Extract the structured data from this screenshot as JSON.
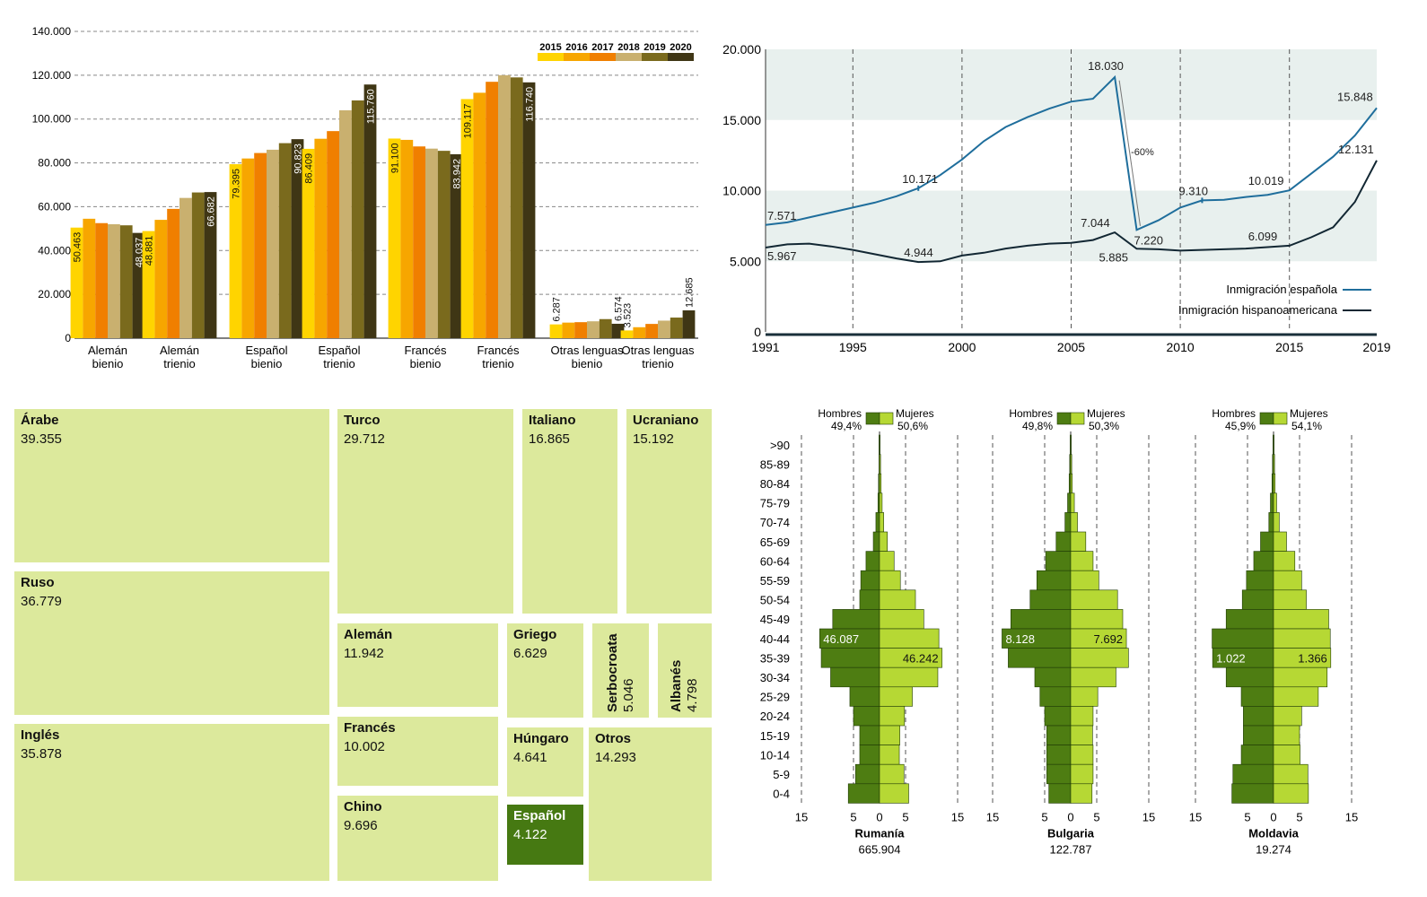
{
  "chart_data": [
    {
      "type": "bar",
      "categories": [
        "Alemán bienio",
        "Alemán trienio",
        "Español bienio",
        "Español trienio",
        "Francés bienio",
        "Francés trienio",
        "Otras lenguas bienio",
        "Otras lenguas trienio"
      ],
      "category_lines": [
        [
          "Alemán",
          "bienio"
        ],
        [
          "Alemán",
          "trienio"
        ],
        [
          "Español",
          "bienio"
        ],
        [
          "Español",
          "trienio"
        ],
        [
          "Francés",
          "bienio"
        ],
        [
          "Francés",
          "trienio"
        ],
        [
          "Otras lenguas",
          "bienio"
        ],
        [
          "Otras lenguas",
          "trienio"
        ]
      ],
      "legend": [
        "2015",
        "2016",
        "2017",
        "2018",
        "2019",
        "2020"
      ],
      "colors": [
        "#ffd400",
        "#f7a600",
        "#f07f00",
        "#c9b06f",
        "#7a6a1d",
        "#3f3615"
      ],
      "series": [
        {
          "name": "2015",
          "values": [
            50463,
            48881,
            79395,
            86409,
            91100,
            109117,
            6287,
            3523
          ]
        },
        {
          "name": "2016",
          "values": [
            54500,
            54000,
            82000,
            91000,
            90500,
            112000,
            7100,
            5000
          ]
        },
        {
          "name": "2017",
          "values": [
            52500,
            59000,
            84500,
            94500,
            87500,
            117000,
            7300,
            6500
          ]
        },
        {
          "name": "2018",
          "values": [
            52000,
            64000,
            86000,
            104000,
            86500,
            120000,
            7700,
            8000
          ]
        },
        {
          "name": "2019",
          "values": [
            51500,
            66500,
            89000,
            108500,
            85500,
            119000,
            8700,
            9400
          ]
        },
        {
          "name": "2020",
          "values": [
            48037,
            66682,
            90823,
            115760,
            83942,
            116740,
            6574,
            12685
          ]
        }
      ],
      "labels": [
        {
          "cat": 0,
          "series": 0,
          "text": "50.463"
        },
        {
          "cat": 0,
          "series": 5,
          "text": "48.037"
        },
        {
          "cat": 1,
          "series": 0,
          "text": "48.881"
        },
        {
          "cat": 1,
          "series": 5,
          "text": "66.682"
        },
        {
          "cat": 2,
          "series": 0,
          "text": "79.395"
        },
        {
          "cat": 2,
          "series": 5,
          "text": "90.823"
        },
        {
          "cat": 3,
          "series": 0,
          "text": "86.409"
        },
        {
          "cat": 3,
          "series": 5,
          "text": "115.760"
        },
        {
          "cat": 4,
          "series": 0,
          "text": "91.100"
        },
        {
          "cat": 4,
          "series": 5,
          "text": "83.942"
        },
        {
          "cat": 5,
          "series": 0,
          "text": "109.117"
        },
        {
          "cat": 5,
          "series": 5,
          "text": "116.740"
        },
        {
          "cat": 6,
          "series": 0,
          "text": "6.287"
        },
        {
          "cat": 6,
          "series": 5,
          "text": "6.574"
        },
        {
          "cat": 7,
          "series": 0,
          "text": "3.523"
        },
        {
          "cat": 7,
          "series": 5,
          "text": "12.685"
        }
      ],
      "yticks": [
        0,
        20000,
        40000,
        60000,
        80000,
        100000,
        120000,
        140000
      ],
      "ytick_labels": [
        "0",
        "20.000",
        "40.000",
        "60.000",
        "80.000",
        "100.000",
        "120.000",
        "140.000"
      ],
      "ylim": [
        0,
        140000
      ]
    },
    {
      "type": "line",
      "xlim": [
        1991,
        2019
      ],
      "ylim": [
        0,
        20000
      ],
      "xticks": [
        1991,
        1995,
        2000,
        2005,
        2010,
        2015,
        2019
      ],
      "yticks": [
        0,
        5000,
        10000,
        15000,
        20000
      ],
      "ytick_labels": [
        "0",
        "5.000",
        "10.000",
        "15.000",
        "20.000"
      ],
      "series": [
        {
          "name": "Inmigración española",
          "color": "#1f6e9c",
          "x": [
            1991,
            1992,
            1993,
            1994,
            1995,
            1996,
            1997,
            1998,
            1999,
            2000,
            2001,
            2002,
            2003,
            2004,
            2005,
            2006,
            2007,
            2008,
            2009,
            2010,
            2011,
            2012,
            2013,
            2014,
            2015,
            2016,
            2017,
            2018,
            2019
          ],
          "y": [
            7571,
            7750,
            8100,
            8450,
            8800,
            9150,
            9600,
            10171,
            11100,
            12200,
            13500,
            14500,
            15200,
            15800,
            16300,
            16500,
            18030,
            7220,
            7900,
            8800,
            9310,
            9350,
            9550,
            9700,
            10019,
            11200,
            12400,
            13900,
            15848
          ]
        },
        {
          "name": "Inmigración hispanoamericana",
          "color": "#122733",
          "x": [
            1991,
            1992,
            1993,
            1994,
            1995,
            1996,
            1997,
            1998,
            1999,
            2000,
            2001,
            2002,
            2003,
            2004,
            2005,
            2006,
            2007,
            2008,
            2009,
            2010,
            2011,
            2012,
            2013,
            2014,
            2015,
            2016,
            2017,
            2018,
            2019
          ],
          "y": [
            5967,
            6200,
            6250,
            6050,
            5800,
            5500,
            5200,
            4944,
            5000,
            5400,
            5600,
            5900,
            6100,
            6250,
            6300,
            6500,
            7044,
            5885,
            5850,
            5750,
            5800,
            5850,
            5900,
            6000,
            6099,
            6700,
            7400,
            9200,
            12131
          ]
        }
      ],
      "annotations": [
        {
          "x": 1991,
          "y": 7571,
          "text": "7.571"
        },
        {
          "x": 1998,
          "y": 10171,
          "text": "10.171"
        },
        {
          "x": 2007,
          "y": 18030,
          "text": "18.030"
        },
        {
          "x": 2008,
          "y": 7220,
          "text": "7.220"
        },
        {
          "x": 2011,
          "y": 9310,
          "text": "9.310"
        },
        {
          "x": 2015,
          "y": 10019,
          "text": "10.019"
        },
        {
          "x": 2019,
          "y": 15848,
          "text": "15.848"
        },
        {
          "x": 1991,
          "y": 5967,
          "text": "5.967"
        },
        {
          "x": 1998,
          "y": 4944,
          "text": "4.944"
        },
        {
          "x": 2007,
          "y": 7044,
          "text": "7.044"
        },
        {
          "x": 2008,
          "y": 5885,
          "text": "5.885"
        },
        {
          "x": 2015,
          "y": 6099,
          "text": "6.099"
        },
        {
          "x": 2019,
          "y": 12131,
          "text": "12.131"
        }
      ],
      "drop_label": "-60%"
    },
    {
      "type": "treemap",
      "items": [
        {
          "name": "Árabe",
          "value": "39.355"
        },
        {
          "name": "Ruso",
          "value": "36.779"
        },
        {
          "name": "Inglés",
          "value": "35.878"
        },
        {
          "name": "Turco",
          "value": "29.712"
        },
        {
          "name": "Italiano",
          "value": "16.865"
        },
        {
          "name": "Ucraniano",
          "value": "15.192"
        },
        {
          "name": "Alemán",
          "value": "11.942"
        },
        {
          "name": "Griego",
          "value": "6.629"
        },
        {
          "name": "Serbocroata",
          "value": "5.046"
        },
        {
          "name": "Albanés",
          "value": "4.798"
        },
        {
          "name": "Francés",
          "value": "10.002"
        },
        {
          "name": "Húngaro",
          "value": "4.641"
        },
        {
          "name": "Otros",
          "value": "14.293"
        },
        {
          "name": "Chino",
          "value": "9.696"
        },
        {
          "name": "Español",
          "value": "4.122"
        }
      ],
      "highlight": "Español",
      "colors": {
        "cell": "#dce99c",
        "highlight": "#467912"
      }
    },
    {
      "type": "pyramid",
      "age_groups": [
        ">90",
        "85-89",
        "80-84",
        "75-79",
        "70-74",
        "65-69",
        "60-64",
        "55-59",
        "50-54",
        "45-49",
        "40-44",
        "35-39",
        "30-34",
        "25-29",
        "20-24",
        "15-19",
        "10-14",
        "5-9",
        "0-4"
      ],
      "axis_ticks": [
        "15",
        "5",
        "0",
        "5",
        "15"
      ],
      "legend": {
        "men": "Hombres",
        "women": "Mujeres"
      },
      "colors": {
        "men": "#4e7d12",
        "women": "#b6d834"
      },
      "countries": [
        {
          "name": "Rumanía",
          "total": "665.904",
          "men_pct": "49,4%",
          "women_pct": "50,6%",
          "men": [
            0.1,
            0.1,
            0.2,
            0.3,
            0.7,
            1.2,
            2.6,
            3.6,
            3.8,
            9.0,
            11.5,
            11.2,
            9.4,
            5.7,
            5.0,
            3.8,
            3.8,
            4.6,
            6.0
          ],
          "women": [
            0.1,
            0.2,
            0.3,
            0.5,
            0.8,
            1.5,
            2.8,
            4.0,
            6.9,
            8.5,
            11.4,
            12.0,
            11.2,
            6.3,
            4.8,
            3.9,
            3.8,
            4.7,
            5.6
          ],
          "labels": [
            {
              "side": "men",
              "group": 10,
              "text": "46.087"
            },
            {
              "side": "women",
              "group": 11,
              "text": "46.242"
            }
          ]
        },
        {
          "name": "Bulgaria",
          "total": "122.787",
          "men_pct": "49,8%",
          "women_pct": "50,3%",
          "men": [
            0.1,
            0.2,
            0.3,
            0.6,
            1.1,
            2.8,
            4.8,
            6.5,
            7.8,
            11.5,
            13.2,
            12.0,
            6.9,
            5.9,
            5.0,
            4.6,
            4.6,
            4.6,
            4.2
          ],
          "women": [
            0.1,
            0.2,
            0.3,
            0.7,
            1.3,
            2.9,
            4.3,
            5.4,
            9.0,
            10.0,
            10.7,
            11.1,
            8.7,
            5.2,
            4.3,
            4.2,
            4.3,
            4.3,
            4.1
          ],
          "labels": [
            {
              "side": "men",
              "group": 10,
              "text": "8.128"
            },
            {
              "side": "women",
              "group": 10,
              "text": "7.692"
            }
          ]
        },
        {
          "name": "Moldavia",
          "total": "19.274",
          "men_pct": "45,9%",
          "women_pct": "54,1%",
          "men": [
            0.1,
            0.2,
            0.3,
            0.6,
            0.9,
            2.5,
            3.8,
            5.2,
            6.0,
            9.1,
            11.8,
            11.7,
            9.1,
            6.2,
            5.8,
            5.8,
            6.2,
            7.8,
            8.0
          ],
          "women": [
            0.1,
            0.2,
            0.3,
            0.6,
            1.1,
            2.5,
            4.1,
            5.4,
            6.3,
            10.6,
            10.9,
            11.0,
            10.3,
            8.6,
            5.4,
            5.0,
            5.1,
            6.6,
            6.7
          ],
          "labels": [
            {
              "side": "men",
              "group": 11,
              "text": "1.022"
            },
            {
              "side": "women",
              "group": 11,
              "text": "1.366"
            }
          ]
        }
      ]
    }
  ]
}
